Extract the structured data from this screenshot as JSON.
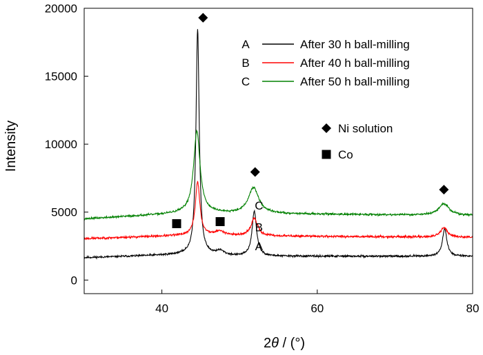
{
  "chart_data": {
    "type": "line",
    "xlabel_base": "2",
    "xlabel_italic": "θ",
    "xlabel_rest": " / (°)",
    "ylabel": "Intensity",
    "xlim": [
      30,
      80
    ],
    "ylim": [
      -1000,
      20000
    ],
    "xticks": [
      40,
      60,
      80
    ],
    "yticks": [
      0,
      5000,
      10000,
      15000,
      20000
    ],
    "grid": false,
    "legend_position": "top-right",
    "series": [
      {
        "name": "After 30 h ball-milling",
        "letter": "A",
        "color": "#000000",
        "baseline": [
          [
            30,
            1650
          ],
          [
            44,
            1900
          ],
          [
            50,
            1750
          ],
          [
            80,
            1750
          ]
        ],
        "peaks": [
          {
            "center": 44.6,
            "height": 16600,
            "width": 0.25
          },
          {
            "center": 47.5,
            "height": 300,
            "width": 0.6
          },
          {
            "center": 51.9,
            "height": 3300,
            "width": 0.35
          },
          {
            "center": 76.4,
            "height": 2000,
            "width": 0.35
          }
        ],
        "noise": 70,
        "seed": 11
      },
      {
        "name": "After 40 h ball-milling",
        "letter": "B",
        "color": "#ff0000",
        "baseline": [
          [
            30,
            3050
          ],
          [
            44,
            3300
          ],
          [
            50,
            3250
          ],
          [
            80,
            3150
          ]
        ],
        "peaks": [
          {
            "center": 44.6,
            "height": 3900,
            "width": 0.35
          },
          {
            "center": 47.5,
            "height": 300,
            "width": 0.8
          },
          {
            "center": 51.9,
            "height": 1300,
            "width": 0.5
          },
          {
            "center": 76.3,
            "height": 700,
            "width": 0.5
          }
        ],
        "noise": 80,
        "seed": 23
      },
      {
        "name": "After 50 h ball-milling",
        "letter": "C",
        "color": "#008000",
        "baseline": [
          [
            30,
            4500
          ],
          [
            44,
            4950
          ],
          [
            50,
            4900
          ],
          [
            80,
            4750
          ]
        ],
        "peaks": [
          {
            "center": 44.5,
            "height": 6000,
            "width": 0.5
          },
          {
            "center": 51.8,
            "height": 1900,
            "width": 0.8
          },
          {
            "center": 76.3,
            "height": 850,
            "width": 0.8
          }
        ],
        "noise": 70,
        "seed": 37
      }
    ],
    "curve_labels": [
      {
        "text": "A",
        "x": 52.5,
        "y": 2500
      },
      {
        "text": "B",
        "x": 52.5,
        "y": 3900
      },
      {
        "text": "C",
        "x": 52.5,
        "y": 5500
      }
    ],
    "markers": [
      {
        "shape": "diamond",
        "x": 45.3,
        "y": 19300,
        "meaning": "Ni solution"
      },
      {
        "shape": "diamond",
        "x": 52.0,
        "y": 7950,
        "meaning": "Ni solution"
      },
      {
        "shape": "diamond",
        "x": 76.3,
        "y": 6650,
        "meaning": "Ni solution"
      },
      {
        "shape": "square",
        "x": 41.9,
        "y": 4150,
        "meaning": "Co"
      },
      {
        "shape": "square",
        "x": 47.5,
        "y": 4300,
        "meaning": "Co"
      }
    ],
    "marker_legend": [
      {
        "shape": "diamond",
        "label": "Ni solution"
      },
      {
        "shape": "square",
        "label": "Co"
      }
    ]
  }
}
